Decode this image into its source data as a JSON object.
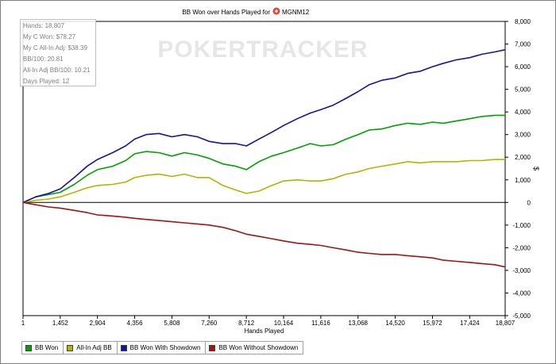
{
  "chart_data": {
    "type": "line",
    "title": "BB Won over Hands Played for",
    "player": "MGNM12",
    "watermark": "POKERTRACKER",
    "xlabel": "Hands Played",
    "ylabel": "$",
    "xlim": [
      1,
      18807
    ],
    "ylim": [
      -5000,
      8000
    ],
    "x_ticks": [
      "1",
      "1,452",
      "2,904",
      "4,356",
      "5,808",
      "7,260",
      "8,712",
      "10,164",
      "11,616",
      "13,068",
      "14,520",
      "15,972",
      "17,424",
      "18,807"
    ],
    "y_ticks": [
      "8,000",
      "7,000",
      "6,000",
      "5,000",
      "4,000",
      "3,000",
      "2,000",
      "1,000",
      "0",
      "-1,000",
      "-2,000",
      "-3,000",
      "-4,000",
      "-5,000"
    ],
    "x": [
      1,
      500,
      1000,
      1452,
      2000,
      2500,
      2904,
      3500,
      4000,
      4356,
      4800,
      5300,
      5808,
      6300,
      6800,
      7260,
      7800,
      8300,
      8712,
      9200,
      9700,
      10164,
      10700,
      11200,
      11616,
      12100,
      12600,
      13068,
      13500,
      14000,
      14520,
      15000,
      15500,
      15972,
      16400,
      16900,
      17424,
      17900,
      18400,
      18807
    ],
    "series": [
      {
        "name": "BB Won",
        "color": "#00a000",
        "values": [
          0,
          250,
          350,
          450,
          800,
          1200,
          1450,
          1600,
          1850,
          2150,
          2250,
          2200,
          2050,
          2200,
          2100,
          1950,
          1700,
          1600,
          1450,
          1800,
          2050,
          2200,
          2400,
          2600,
          2500,
          2550,
          2800,
          3000,
          3200,
          3250,
          3400,
          3500,
          3450,
          3550,
          3500,
          3600,
          3700,
          3800,
          3850,
          3850
        ]
      },
      {
        "name": "All-In Adj BB",
        "color": "#b4b400",
        "values": [
          0,
          100,
          150,
          250,
          450,
          650,
          750,
          800,
          900,
          1100,
          1200,
          1250,
          1150,
          1250,
          1100,
          1100,
          750,
          550,
          400,
          500,
          750,
          950,
          1000,
          950,
          950,
          1050,
          1250,
          1350,
          1500,
          1600,
          1700,
          1800,
          1750,
          1800,
          1800,
          1800,
          1850,
          1850,
          1900,
          1900
        ]
      },
      {
        "name": "BB Won With Showdown",
        "color": "#1414a0",
        "values": [
          0,
          250,
          400,
          600,
          1100,
          1600,
          1900,
          2200,
          2500,
          2800,
          3000,
          3050,
          2900,
          3000,
          2900,
          2700,
          2600,
          2600,
          2500,
          2800,
          3100,
          3400,
          3700,
          3950,
          4100,
          4300,
          4600,
          4900,
          5200,
          5400,
          5500,
          5700,
          5800,
          6000,
          6150,
          6300,
          6400,
          6550,
          6650,
          6750
        ]
      },
      {
        "name": "BB Won Without Showdown",
        "color": "#a01414",
        "values": [
          0,
          -100,
          -200,
          -250,
          -350,
          -450,
          -550,
          -600,
          -650,
          -700,
          -750,
          -800,
          -850,
          -900,
          -950,
          -1000,
          -1100,
          -1250,
          -1400,
          -1500,
          -1600,
          -1700,
          -1800,
          -1850,
          -1900,
          -2000,
          -2100,
          -2200,
          -2250,
          -2300,
          -2300,
          -2350,
          -2400,
          -2450,
          -2550,
          -2600,
          -2650,
          -2700,
          -2750,
          -2850
        ]
      }
    ],
    "stats": [
      "Hands: 18,807",
      "My C Won: $78.27",
      "My C All-In Adj: $38.39",
      "BB/100: 20.81",
      "All-In Adj BB/100: 10.21",
      "Days Played: 12"
    ],
    "grid": false,
    "legend_position": "bottom"
  }
}
